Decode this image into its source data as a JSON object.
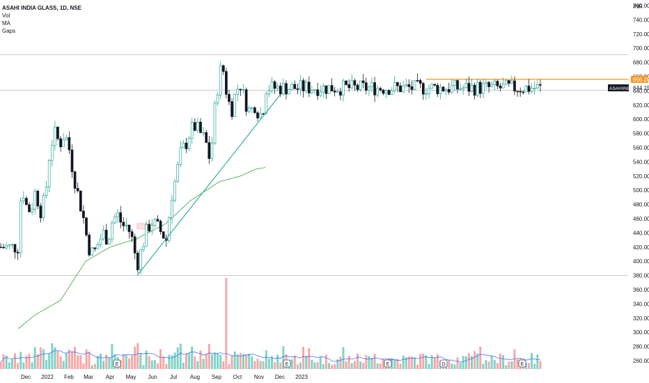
{
  "legend": {
    "title": "ASAHI INDIA GLASS, 1D, NSE",
    "indicators": [
      "Vol",
      "MA",
      "Gaps"
    ]
  },
  "currency": "INR",
  "price_ticks": [
    "760.00",
    "740.00",
    "720.00",
    "700.00",
    "680.00",
    "660.00",
    "640.00",
    "620.00",
    "600.00",
    "580.00",
    "560.00",
    "540.00",
    "520.00",
    "500.00",
    "480.00",
    "460.00",
    "440.00",
    "420.00",
    "400.00",
    "380.00",
    "360.00",
    "340.00",
    "320.00",
    "300.00",
    "280.00",
    "260.00"
  ],
  "time_ticks": [
    "Dec",
    "2022",
    "Feb",
    "Mar",
    "Apr",
    "May",
    "Jun",
    "Jul",
    "Aug",
    "Sep",
    "Oct",
    "Nov",
    "Dec",
    "2023"
  ],
  "symbol_tag": {
    "label": "ASAHIINDIA",
    "value": "644.15"
  },
  "resistance_tag": "656.20",
  "event_markers": [
    "E",
    "E",
    "E",
    "D",
    "E"
  ],
  "colors": {
    "up": "#26a69a",
    "down": "#131722",
    "ma": "#4caf50",
    "trend": "#26a69a",
    "resistance": "#f7931a",
    "vol_up": "#7fd3c7",
    "vol_down": "#f9a6a6",
    "vol_ma": "#2962ff",
    "gap": "#f7a8a8"
  },
  "chart_data": {
    "type": "candlestick",
    "title": "ASAHI INDIA GLASS, 1D, NSE",
    "ylabel": "INR",
    "ylim": [
      250,
      770
    ],
    "x_ticks": [
      "Dec",
      "2022",
      "Feb",
      "Mar",
      "Apr",
      "May",
      "Jun",
      "Jul",
      "Aug",
      "Sep",
      "Oct",
      "Nov",
      "Dec",
      "2023"
    ],
    "price_path": [
      {
        "date": "2021-11-20",
        "close": 420
      },
      {
        "date": "2021-11-25",
        "close": 510
      },
      {
        "date": "2021-12-01",
        "close": 480
      },
      {
        "date": "2021-12-08",
        "close": 470
      },
      {
        "date": "2021-12-15",
        "close": 500
      },
      {
        "date": "2021-12-22",
        "close": 470
      },
      {
        "date": "2021-12-29",
        "close": 490
      },
      {
        "date": "2022-01-05",
        "close": 560
      },
      {
        "date": "2022-01-12",
        "close": 580
      },
      {
        "date": "2022-01-19",
        "close": 565
      },
      {
        "date": "2022-01-26",
        "close": 580
      },
      {
        "date": "2022-02-01",
        "close": 560
      },
      {
        "date": "2022-02-08",
        "close": 520
      },
      {
        "date": "2022-02-15",
        "close": 490
      },
      {
        "date": "2022-02-22",
        "close": 460
      },
      {
        "date": "2022-03-01",
        "close": 420
      },
      {
        "date": "2022-03-08",
        "close": 410
      },
      {
        "date": "2022-03-15",
        "close": 425
      },
      {
        "date": "2022-03-22",
        "close": 440
      },
      {
        "date": "2022-03-29",
        "close": 430
      },
      {
        "date": "2022-04-05",
        "close": 460
      },
      {
        "date": "2022-04-12",
        "close": 465
      },
      {
        "date": "2022-04-19",
        "close": 450
      },
      {
        "date": "2022-04-26",
        "close": 450
      },
      {
        "date": "2022-05-03",
        "close": 430
      },
      {
        "date": "2022-05-10",
        "close": 395
      },
      {
        "date": "2022-05-17",
        "close": 420
      },
      {
        "date": "2022-05-24",
        "close": 445
      },
      {
        "date": "2022-05-31",
        "close": 455
      },
      {
        "date": "2022-06-07",
        "close": 450
      },
      {
        "date": "2022-06-14",
        "close": 440
      },
      {
        "date": "2022-06-21",
        "close": 430
      },
      {
        "date": "2022-06-28",
        "close": 490
      },
      {
        "date": "2022-07-05",
        "close": 520
      },
      {
        "date": "2022-07-12",
        "close": 555
      },
      {
        "date": "2022-07-19",
        "close": 565
      },
      {
        "date": "2022-07-26",
        "close": 585
      },
      {
        "date": "2022-08-02",
        "close": 590
      },
      {
        "date": "2022-08-09",
        "close": 580
      },
      {
        "date": "2022-08-16",
        "close": 570
      },
      {
        "date": "2022-08-23",
        "close": 540
      },
      {
        "date": "2022-08-30",
        "close": 620
      },
      {
        "date": "2022-09-05",
        "close": 660
      },
      {
        "date": "2022-09-09",
        "close": 680
      },
      {
        "date": "2022-09-15",
        "close": 640
      },
      {
        "date": "2022-09-22",
        "close": 610
      },
      {
        "date": "2022-09-29",
        "close": 640
      },
      {
        "date": "2022-10-05",
        "close": 650
      },
      {
        "date": "2022-10-12",
        "close": 625
      },
      {
        "date": "2022-10-19",
        "close": 610
      },
      {
        "date": "2022-10-26",
        "close": 620
      },
      {
        "date": "2022-11-02",
        "close": 605
      },
      {
        "date": "2022-11-07",
        "close": 615
      },
      {
        "date": "2022-11-10",
        "close": 644.15
      }
    ],
    "moving_average": [
      {
        "date": "2021-11-20",
        "value": 305
      },
      {
        "date": "2021-12-15",
        "value": 325
      },
      {
        "date": "2022-01-20",
        "value": 345
      },
      {
        "date": "2022-02-25",
        "value": 400
      },
      {
        "date": "2022-04-01",
        "value": 420
      },
      {
        "date": "2022-05-10",
        "value": 432
      },
      {
        "date": "2022-06-20",
        "value": 453
      },
      {
        "date": "2022-07-25",
        "value": 485
      },
      {
        "date": "2022-09-05",
        "value": 512
      },
      {
        "date": "2022-10-05",
        "value": 520
      },
      {
        "date": "2022-10-28",
        "value": 530
      },
      {
        "date": "2022-11-10",
        "value": 532
      }
    ],
    "trendline": [
      {
        "date": "2022-05-10",
        "value": 380
      },
      {
        "date": "2022-12-01",
        "value": 634
      }
    ],
    "resistance_level": 656.2,
    "horizontal_lines": [
      691,
      641,
      380
    ],
    "gap_zone": {
      "from": "2022-05-10",
      "to": "2022-06-01",
      "low": 446,
      "high": 453
    },
    "volume_spike_date": "2022-09-13"
  }
}
